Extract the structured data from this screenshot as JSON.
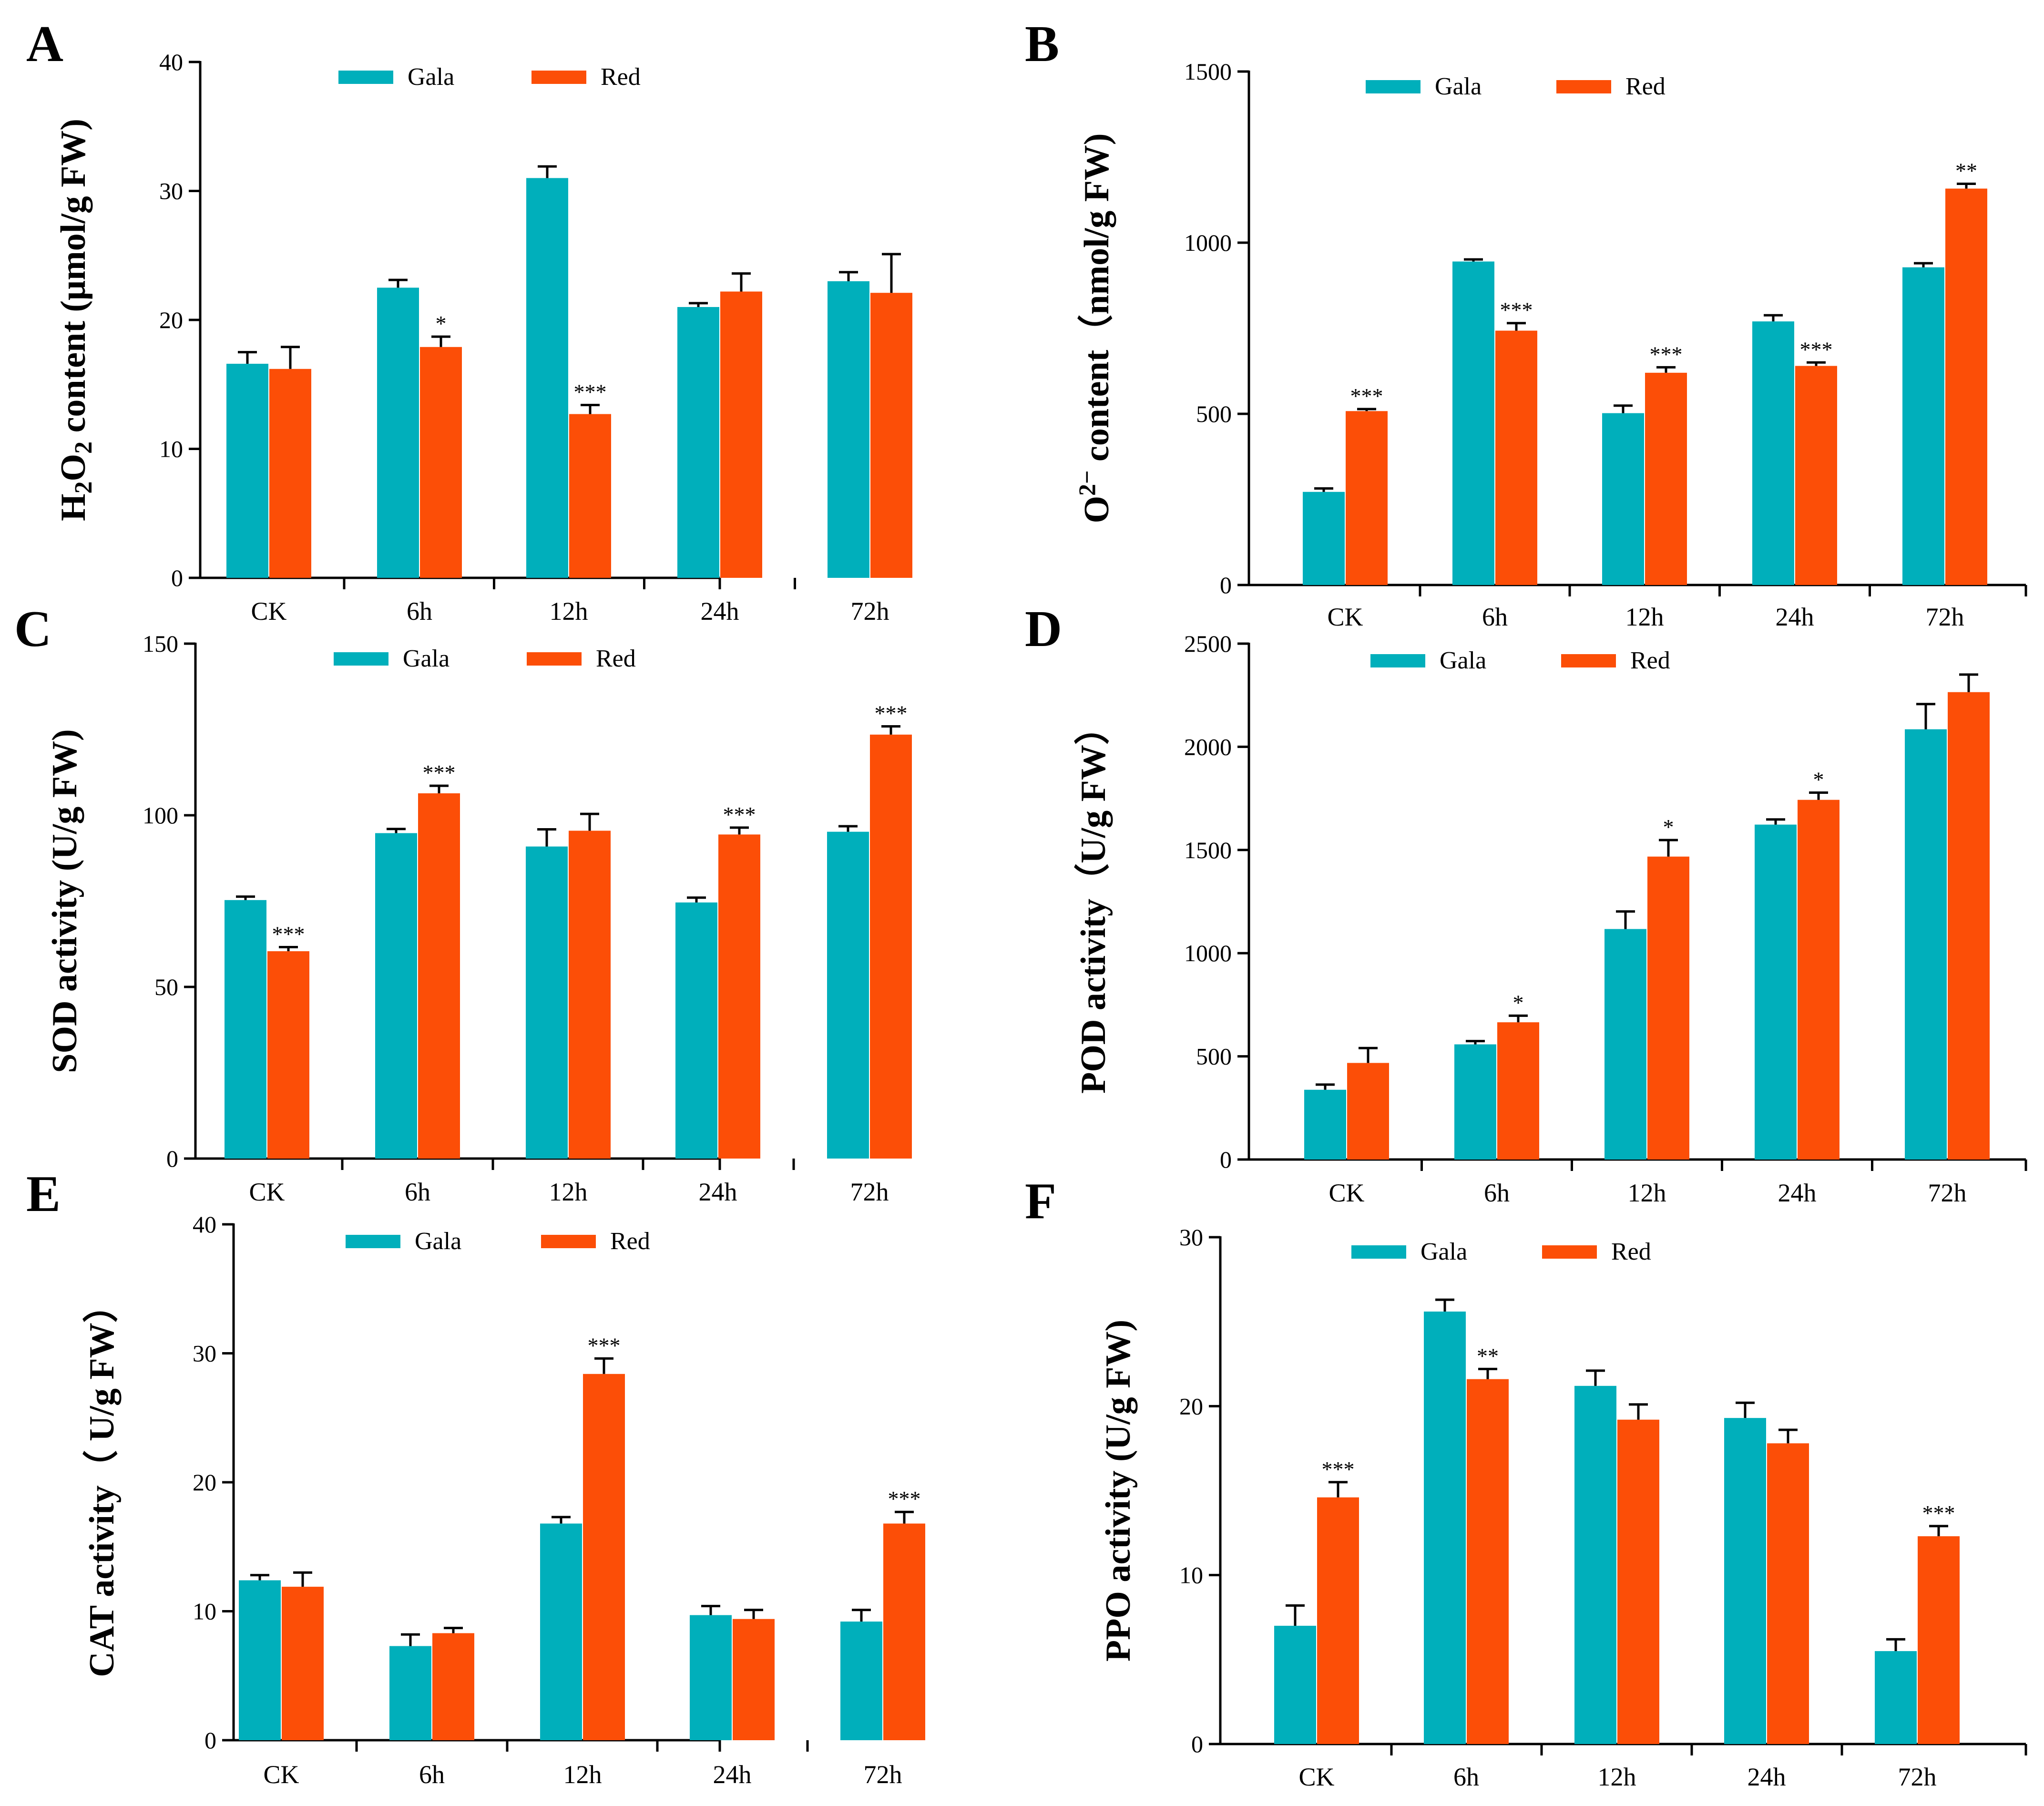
{
  "figure": {
    "colors": {
      "gala": "#00AFBB",
      "red": "#FC4E07"
    }
  },
  "chart_data": [
    {
      "panel": "A",
      "type": "bar",
      "ylabel_parts": [
        "H",
        "2",
        "O",
        "2",
        " content (μmol/g FW)"
      ],
      "ylim": [
        0,
        40
      ],
      "yticks": [
        "0",
        "10",
        "20",
        "30",
        "40"
      ],
      "categories": [
        "CK",
        "6h",
        "12h",
        "24h",
        "72h"
      ],
      "series": [
        {
          "name": "Gala",
          "values": [
            16.6,
            22.5,
            31.0,
            21.0,
            23.0
          ],
          "errors": [
            0.9,
            0.6,
            0.9,
            0.3,
            0.7
          ]
        },
        {
          "name": "Red",
          "values": [
            16.2,
            17.9,
            12.7,
            22.2,
            22.1
          ],
          "errors": [
            1.7,
            0.8,
            0.7,
            1.4,
            3.0
          ]
        }
      ],
      "significance": [
        "",
        "*",
        "***",
        "",
        ""
      ]
    },
    {
      "panel": "B",
      "type": "bar",
      "ylabel_parts": [
        "O",
        "2−",
        " content（nmol/g FW)"
      ],
      "ylim": [
        0,
        1500
      ],
      "yticks": [
        "0",
        "500",
        "1000",
        "1500"
      ],
      "categories": [
        "CK",
        "6h",
        "12h",
        "24h",
        "72h"
      ],
      "series": [
        {
          "name": "Gala",
          "values": [
            272,
            945,
            502,
            770,
            928
          ],
          "errors": [
            10,
            6,
            22,
            18,
            12
          ]
        },
        {
          "name": "Red",
          "values": [
            508,
            743,
            620,
            640,
            1158
          ],
          "errors": [
            6,
            22,
            16,
            10,
            14
          ]
        }
      ],
      "significance": [
        "***",
        "***",
        "***",
        "***",
        "**"
      ]
    },
    {
      "panel": "C",
      "type": "bar",
      "ylabel_parts": [
        "SOD activity (U/g FW)"
      ],
      "ylim": [
        0,
        150
      ],
      "yticks": [
        "0",
        "50",
        "100",
        "150"
      ],
      "categories": [
        "CK",
        "6h",
        "12h",
        "24h",
        "72h"
      ],
      "series": [
        {
          "name": "Gala",
          "values": [
            75.3,
            94.8,
            90.9,
            74.6,
            95.2
          ],
          "errors": [
            1.0,
            1.2,
            5.0,
            1.4,
            1.6
          ]
        },
        {
          "name": "Red",
          "values": [
            60.4,
            106.4,
            95.5,
            94.4,
            123.5
          ],
          "errors": [
            1.2,
            2.2,
            4.9,
            2.0,
            2.4
          ]
        }
      ],
      "significance": [
        "***",
        "***",
        "",
        "***",
        "***"
      ]
    },
    {
      "panel": "D",
      "type": "bar",
      "ylabel_parts": [
        "POD activity（U/g FW）"
      ],
      "ylim": [
        0,
        2500
      ],
      "yticks": [
        "0",
        "500",
        "1000",
        "1500",
        "2000",
        "2500"
      ],
      "categories": [
        "CK",
        "6h",
        "12h",
        "24h",
        "72h"
      ],
      "series": [
        {
          "name": "Gala",
          "values": [
            338,
            558,
            1117,
            1623,
            2085
          ],
          "errors": [
            25,
            16,
            85,
            25,
            122
          ]
        },
        {
          "name": "Red",
          "values": [
            468,
            665,
            1468,
            1743,
            2265
          ],
          "errors": [
            72,
            32,
            80,
            35,
            85
          ]
        }
      ],
      "significance": [
        "",
        "*",
        "*",
        "*",
        ""
      ]
    },
    {
      "panel": "E",
      "type": "bar",
      "ylabel_parts": [
        "CAT activity（ U/g FW）"
      ],
      "ylim": [
        0,
        40
      ],
      "yticks": [
        "0",
        "10",
        "20",
        "30",
        "40"
      ],
      "categories": [
        "CK",
        "6h",
        "12h",
        "24h",
        "72h"
      ],
      "series": [
        {
          "name": "Gala",
          "values": [
            12.4,
            7.3,
            16.8,
            9.7,
            9.2
          ],
          "errors": [
            0.4,
            0.9,
            0.5,
            0.7,
            0.9
          ]
        },
        {
          "name": "Red",
          "values": [
            11.9,
            8.3,
            28.4,
            9.4,
            16.8
          ],
          "errors": [
            1.1,
            0.4,
            1.2,
            0.7,
            0.9
          ]
        }
      ],
      "significance": [
        "",
        "",
        "***",
        "",
        "***"
      ]
    },
    {
      "panel": "F",
      "type": "bar",
      "ylabel_parts": [
        "PPO activity (U/g FW)"
      ],
      "ylim": [
        0,
        30
      ],
      "yticks": [
        "0",
        "10",
        "20",
        "30"
      ],
      "categories": [
        "CK",
        "6h",
        "12h",
        "24h",
        "72h"
      ],
      "series": [
        {
          "name": "Gala",
          "values": [
            7.0,
            25.6,
            21.2,
            19.3,
            5.5
          ],
          "errors": [
            1.2,
            0.7,
            0.9,
            0.9,
            0.7
          ]
        },
        {
          "name": "Red",
          "values": [
            14.6,
            21.6,
            19.2,
            17.8,
            12.3
          ],
          "errors": [
            0.9,
            0.6,
            0.9,
            0.8,
            0.6
          ]
        }
      ],
      "significance": [
        "***",
        "**",
        "",
        "",
        "***"
      ]
    }
  ]
}
